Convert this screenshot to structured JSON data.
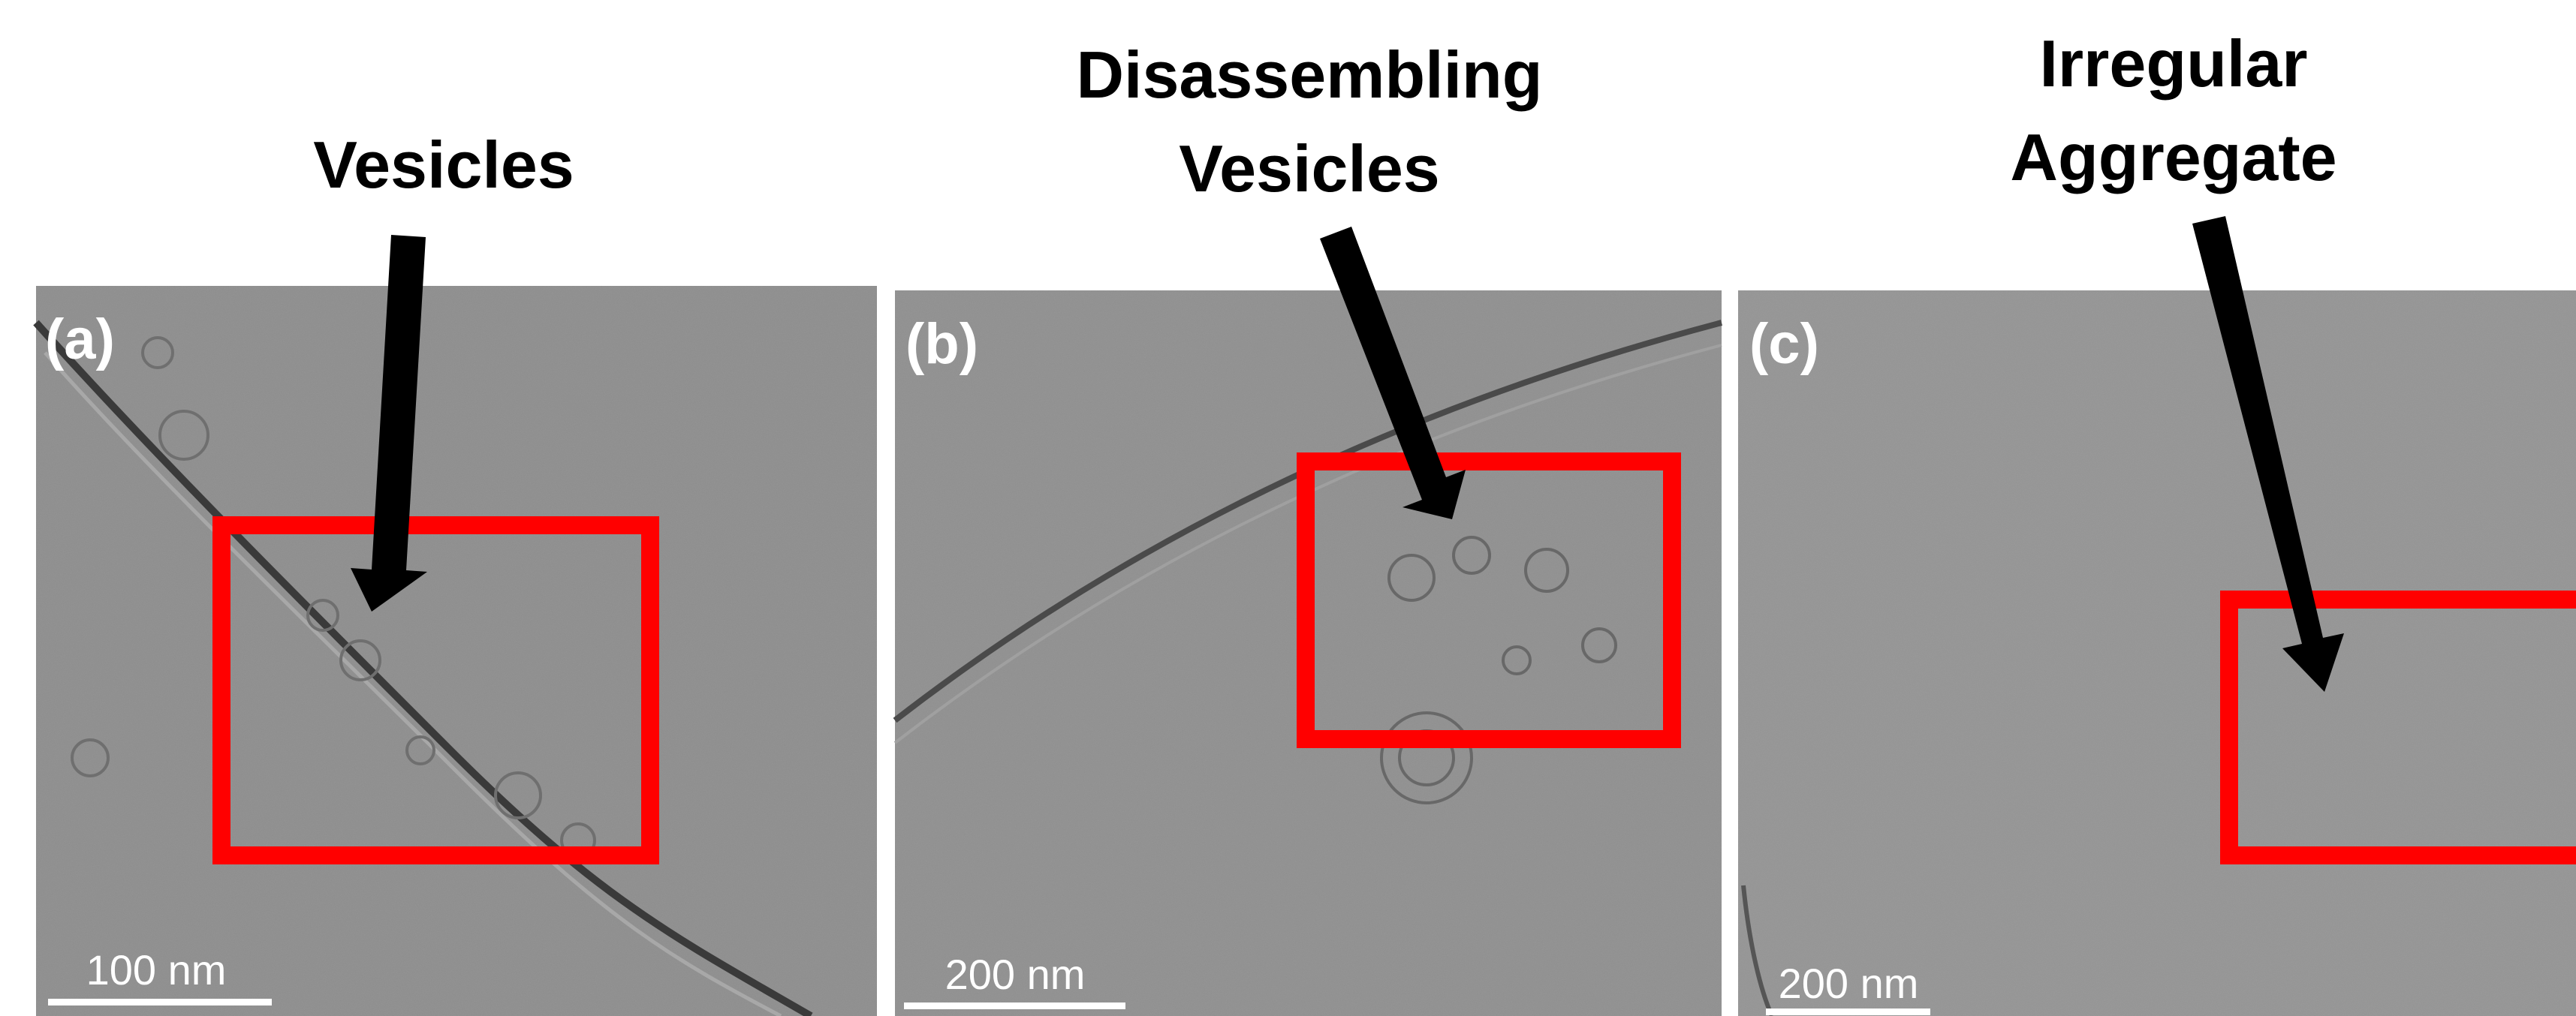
{
  "panels": [
    {
      "annotation": [
        "Vesicles"
      ],
      "label": "(a)",
      "scale_bar": "100 nm"
    },
    {
      "annotation": [
        "Disassembling",
        "Vesicles"
      ],
      "label": "(b)",
      "scale_bar": "200 nm"
    },
    {
      "annotation": [
        "Irregular",
        "Aggregate"
      ],
      "label": "(c)",
      "scale_bar": "200 nm"
    }
  ]
}
